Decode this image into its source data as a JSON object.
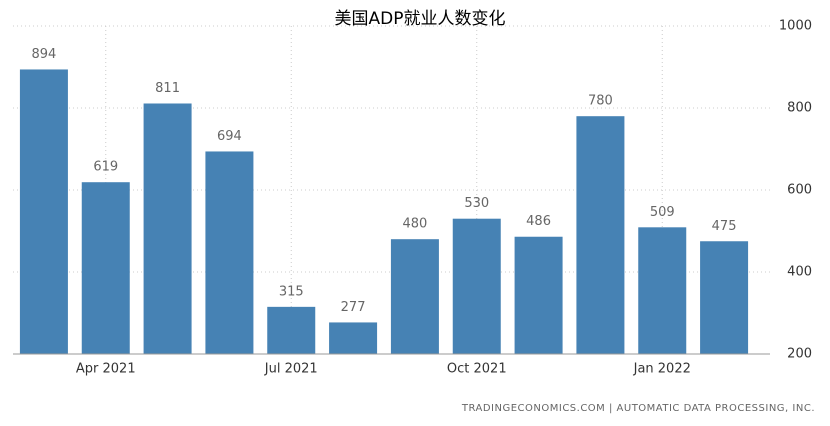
{
  "chart_data": {
    "type": "bar",
    "title": "美国ADP就业人数变化",
    "categories": [
      null,
      "Apr 2021",
      null,
      null,
      "Jul 2021",
      null,
      null,
      "Oct 2021",
      null,
      null,
      "Jan 2022",
      null
    ],
    "values": [
      894,
      619,
      811,
      694,
      315,
      277,
      480,
      530,
      486,
      780,
      509,
      475
    ],
    "color": "#4682b4",
    "ylim": [
      200,
      1000
    ],
    "yticks": [
      200,
      400,
      600,
      800,
      1000
    ],
    "grid": true,
    "source": "TRADINGECONOMICS.COM | AUTOMATIC DATA PROCESSING, INC."
  }
}
